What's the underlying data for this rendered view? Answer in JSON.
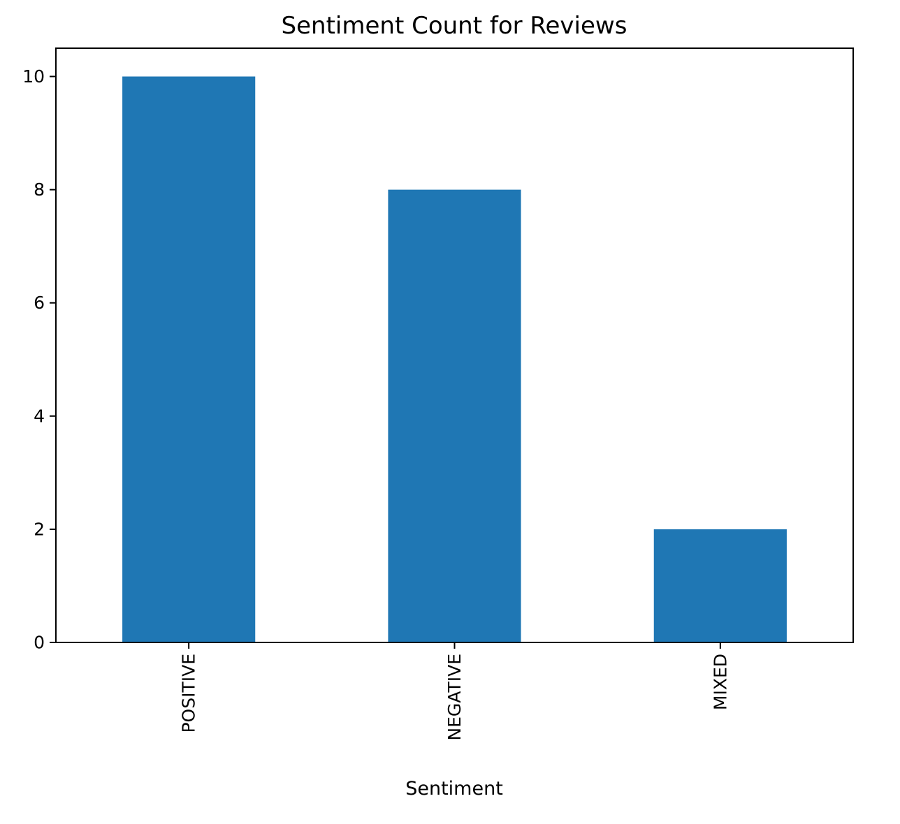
{
  "chart_data": {
    "type": "bar",
    "title": "Sentiment Count for Reviews",
    "xlabel": "Sentiment",
    "ylabel": "",
    "categories": [
      "POSITIVE",
      "NEGATIVE",
      "MIXED"
    ],
    "values": [
      10,
      8,
      2
    ],
    "ylim": [
      0,
      10.5
    ],
    "yticks": [
      0,
      2,
      4,
      6,
      8,
      10
    ],
    "xtick_rotation": "vertical",
    "grid": false,
    "legend": "none",
    "bar_color": "#1f77b4"
  }
}
